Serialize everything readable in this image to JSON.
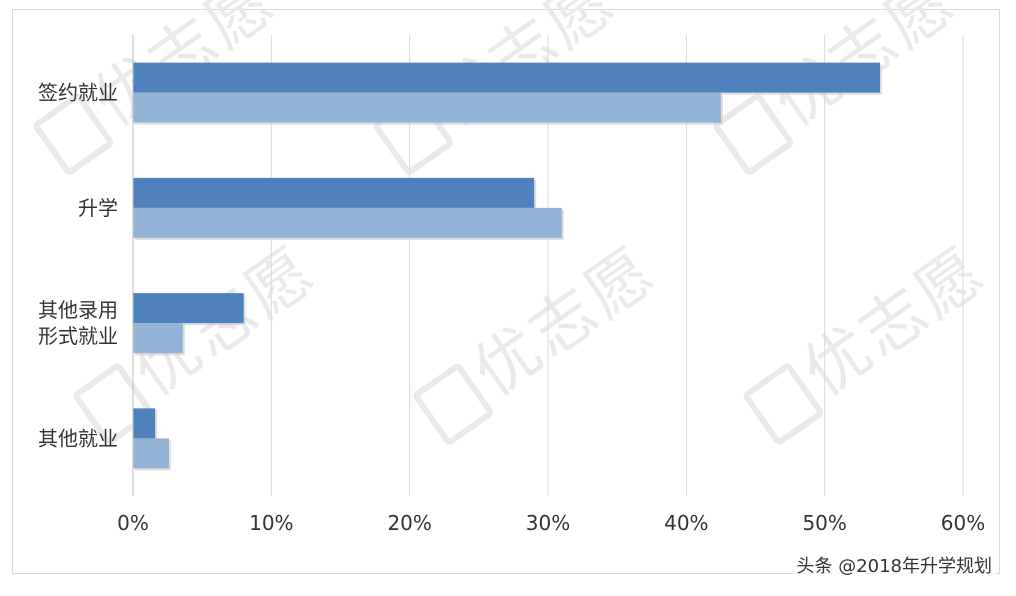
{
  "chart_data": {
    "type": "bar",
    "orientation": "horizontal",
    "categories": [
      [
        "签约就业"
      ],
      [
        "升学"
      ],
      [
        "其他录用",
        "形式就业"
      ],
      [
        "其他就业"
      ]
    ],
    "series": [
      {
        "values": [
          54,
          29,
          8,
          1.6
        ],
        "color": "#4f81bd"
      },
      {
        "values": [
          42.5,
          31,
          3.6,
          2.6
        ],
        "color": "#95b3d7"
      }
    ],
    "xlim": [
      0,
      60
    ],
    "x_ticks": [
      "0%",
      "10%",
      "20%",
      "30%",
      "40%",
      "50%",
      "60%"
    ],
    "grid": true,
    "legend": "none"
  },
  "watermark": {
    "text": "优志愿"
  },
  "source_credit": "头条 @2018年升学规划"
}
